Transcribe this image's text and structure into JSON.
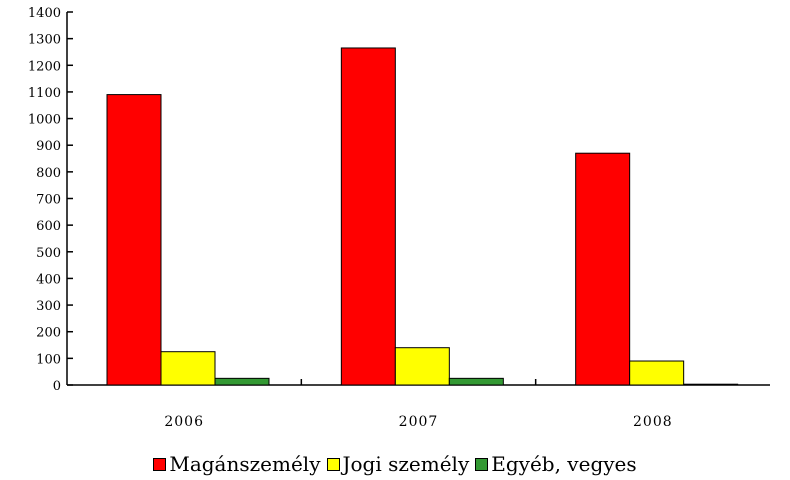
{
  "chart_data": {
    "type": "bar",
    "categories": [
      "2006",
      "2007",
      "2008"
    ],
    "series": [
      {
        "name": "Magánszemély",
        "color": "#ff0000",
        "values": [
          1090,
          1265,
          870
        ]
      },
      {
        "name": "Jogi személy",
        "color": "#ffff00",
        "values": [
          125,
          140,
          90
        ]
      },
      {
        "name": "Egyéb, vegyes",
        "color": "#339933",
        "values": [
          25,
          25,
          3
        ]
      }
    ],
    "yticks": [
      "0",
      "100",
      "200",
      "300",
      "400",
      "500",
      "600",
      "700",
      "800",
      "900",
      "1000",
      "1100",
      "1200",
      "1300",
      "1400"
    ],
    "ylim": [
      0,
      1400
    ],
    "title": "",
    "xlabel": "",
    "ylabel": "",
    "legend_position": "bottom",
    "grid": false
  }
}
